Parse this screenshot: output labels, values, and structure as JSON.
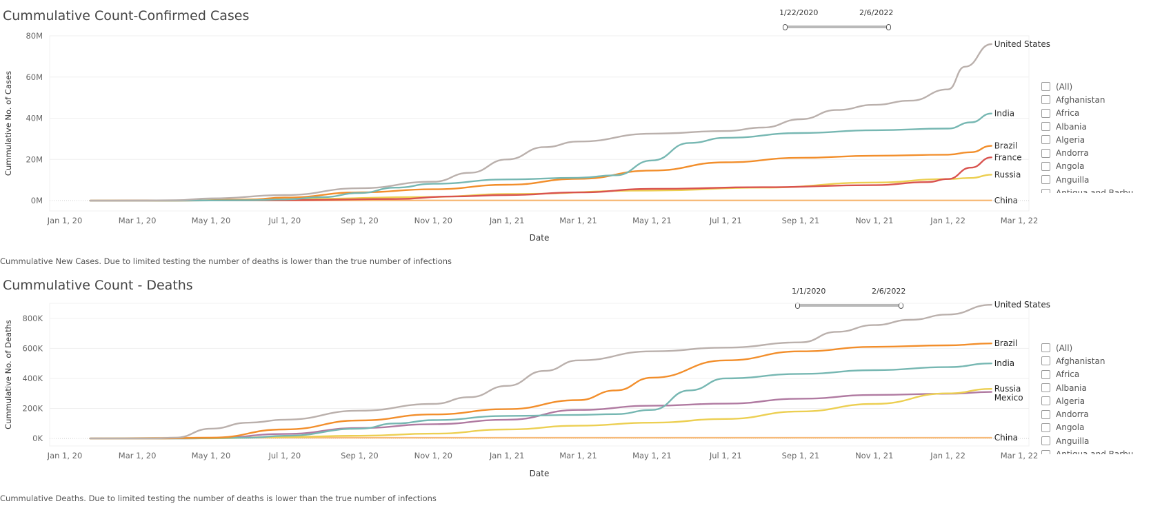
{
  "charts": [
    {
      "title": "Cummulative Count-Confirmed Cases",
      "caption": "Cummulative New Cases.  Due to limited testing the number of deaths is lower than the true number of infections",
      "slider": {
        "start": "1/22/2020",
        "end": "2/6/2022"
      },
      "legend_items": [
        "(All)",
        "Afghanistan",
        "Africa",
        "Albania",
        "Algeria",
        "Andorra",
        "Angola",
        "Anguilla",
        "Antigua and Barbu"
      ]
    },
    {
      "title": "Cummulative Count - Deaths",
      "caption": "Cummulative Deaths.  Due to limited testing the number of deaths is lower than the true number of infections",
      "slider": {
        "start": "1/1/2020",
        "end": "2/6/2022"
      },
      "legend_items": [
        "(All)",
        "Afghanistan",
        "Africa",
        "Albania",
        "Algeria",
        "Andorra",
        "Angola",
        "Anguilla",
        "Antigua and Barbu"
      ]
    }
  ],
  "chart_data": [
    {
      "type": "line",
      "title": "Cummulative Count-Confirmed Cases",
      "xlabel": "Date",
      "ylabel": "Cummulative No. of Cases",
      "xlim": [
        "2020-01-01",
        "2022-03-01"
      ],
      "ylim": [
        -5,
        80
      ],
      "yticks": [
        0,
        20,
        40,
        60,
        80
      ],
      "ytick_labels": [
        "0M",
        "20M",
        "40M",
        "60M",
        "80M"
      ],
      "xticks": [
        "2020-01-01",
        "2020-03-01",
        "2020-05-01",
        "2020-07-01",
        "2020-09-01",
        "2020-11-01",
        "2021-01-01",
        "2021-03-01",
        "2021-05-01",
        "2021-07-01",
        "2021-09-01",
        "2021-11-01",
        "2022-01-01",
        "2022-03-01"
      ],
      "xtick_labels": [
        "Jan 1, 20",
        "Mar 1, 20",
        "May 1, 20",
        "Jul 1, 20",
        "Sep 1, 20",
        "Nov 1, 20",
        "Jan 1, 21",
        "Mar 1, 21",
        "May 1, 21",
        "Jul 1, 21",
        "Sep 1, 21",
        "Nov 1, 21",
        "Jan 1, 22",
        "Mar 1, 22"
      ],
      "grid": true,
      "legend": "right",
      "series": [
        {
          "name": "China",
          "color": "#f7bb7a",
          "label_color": "#333333",
          "points": [
            [
              "2020-01-22",
              0.0
            ],
            [
              "2020-03-01",
              0.08
            ],
            [
              "2022-02-06",
              0.1
            ]
          ]
        },
        {
          "name": "Russia",
          "color": "#eccf52",
          "label_color": "#333333",
          "points": [
            [
              "2020-01-22",
              0
            ],
            [
              "2020-04-01",
              0.01
            ],
            [
              "2020-07-01",
              0.7
            ],
            [
              "2020-11-01",
              1.8
            ],
            [
              "2021-01-01",
              3.2
            ],
            [
              "2021-05-01",
              4.9
            ],
            [
              "2021-08-01",
              6.3
            ],
            [
              "2021-11-01",
              8.8
            ],
            [
              "2022-01-01",
              10.5
            ],
            [
              "2022-01-20",
              11.0
            ],
            [
              "2022-02-06",
              12.6
            ]
          ]
        },
        {
          "name": "France",
          "color": "#d9534f",
          "label_color": "#333333",
          "points": [
            [
              "2020-01-22",
              0
            ],
            [
              "2020-03-01",
              0.01
            ],
            [
              "2020-07-01",
              0.2
            ],
            [
              "2020-10-01",
              0.8
            ],
            [
              "2020-11-15",
              2.0
            ],
            [
              "2021-01-01",
              2.7
            ],
            [
              "2021-03-01",
              4.0
            ],
            [
              "2021-05-01",
              5.7
            ],
            [
              "2021-08-01",
              6.5
            ],
            [
              "2021-11-01",
              7.5
            ],
            [
              "2021-12-15",
              9.0
            ],
            [
              "2022-01-01",
              10.5
            ],
            [
              "2022-01-20",
              16.0
            ],
            [
              "2022-02-06",
              21.0
            ]
          ]
        },
        {
          "name": "Brazil",
          "color": "#f28e2b",
          "label_color": "#333333",
          "points": [
            [
              "2020-01-22",
              0
            ],
            [
              "2020-04-01",
              0.01
            ],
            [
              "2020-06-01",
              0.5
            ],
            [
              "2020-07-01",
              1.5
            ],
            [
              "2020-09-01",
              4.0
            ],
            [
              "2020-11-01",
              5.5
            ],
            [
              "2021-01-01",
              7.7
            ],
            [
              "2021-03-01",
              10.6
            ],
            [
              "2021-05-01",
              14.6
            ],
            [
              "2021-07-01",
              18.6
            ],
            [
              "2021-09-01",
              20.8
            ],
            [
              "2021-11-01",
              21.8
            ],
            [
              "2022-01-01",
              22.3
            ],
            [
              "2022-01-20",
              23.5
            ],
            [
              "2022-02-06",
              26.6
            ]
          ]
        },
        {
          "name": "India",
          "color": "#76b7b2",
          "label_color": "#333333",
          "points": [
            [
              "2020-01-22",
              0
            ],
            [
              "2020-04-01",
              0.01
            ],
            [
              "2020-06-01",
              0.2
            ],
            [
              "2020-07-01",
              0.6
            ],
            [
              "2020-08-01",
              1.7
            ],
            [
              "2020-09-01",
              3.7
            ],
            [
              "2020-10-01",
              6.3
            ],
            [
              "2020-11-01",
              8.2
            ],
            [
              "2021-01-01",
              10.3
            ],
            [
              "2021-03-01",
              11.1
            ],
            [
              "2021-04-01",
              12.3
            ],
            [
              "2021-05-01",
              19.5
            ],
            [
              "2021-06-01",
              28.0
            ],
            [
              "2021-07-01",
              30.5
            ],
            [
              "2021-09-01",
              32.8
            ],
            [
              "2021-11-01",
              34.2
            ],
            [
              "2022-01-01",
              35.0
            ],
            [
              "2022-01-20",
              38.0
            ],
            [
              "2022-02-06",
              42.3
            ]
          ]
        },
        {
          "name": "United States",
          "color": "#bab0ac",
          "label_color": "#333333",
          "points": [
            [
              "2020-01-22",
              0
            ],
            [
              "2020-03-01",
              0.01
            ],
            [
              "2020-04-01",
              0.2
            ],
            [
              "2020-05-01",
              1.1
            ],
            [
              "2020-07-01",
              2.7
            ],
            [
              "2020-09-01",
              6.0
            ],
            [
              "2020-11-01",
              9.2
            ],
            [
              "2020-12-01",
              13.5
            ],
            [
              "2021-01-01",
              20.0
            ],
            [
              "2021-02-01",
              26.0
            ],
            [
              "2021-03-01",
              28.7
            ],
            [
              "2021-05-01",
              32.5
            ],
            [
              "2021-07-01",
              33.8
            ],
            [
              "2021-08-01",
              35.5
            ],
            [
              "2021-09-01",
              39.5
            ],
            [
              "2021-10-01",
              44.0
            ],
            [
              "2021-11-01",
              46.5
            ],
            [
              "2021-12-01",
              48.5
            ],
            [
              "2022-01-01",
              54.0
            ],
            [
              "2022-01-15",
              65.0
            ],
            [
              "2022-02-06",
              76.0
            ]
          ]
        }
      ]
    },
    {
      "type": "line",
      "title": "Cummulative Count - Deaths",
      "xlabel": "Date",
      "ylabel": "Cummulative No. of Deaths",
      "xlim": [
        "2020-01-01",
        "2022-03-01"
      ],
      "ylim": [
        -50,
        900
      ],
      "yticks": [
        0,
        200,
        400,
        600,
        800
      ],
      "ytick_labels": [
        "0K",
        "200K",
        "400K",
        "600K",
        "800K"
      ],
      "xticks": [
        "2020-01-01",
        "2020-03-01",
        "2020-05-01",
        "2020-07-01",
        "2020-09-01",
        "2020-11-01",
        "2021-01-01",
        "2021-03-01",
        "2021-05-01",
        "2021-07-01",
        "2021-09-01",
        "2021-11-01",
        "2022-01-01",
        "2022-03-01"
      ],
      "xtick_labels": [
        "Jan 1, 20",
        "Mar 1, 20",
        "May 1, 20",
        "Jul 1, 20",
        "Sep 1, 20",
        "Nov 1, 20",
        "Jan 1, 21",
        "Mar 1, 21",
        "May 1, 21",
        "Jul 1, 21",
        "Sep 1, 21",
        "Nov 1, 21",
        "Jan 1, 22",
        "Mar 1, 22"
      ],
      "grid": true,
      "legend": "right",
      "series": [
        {
          "name": "China",
          "color": "#f7bb7a",
          "label_color": "#222222",
          "points": [
            [
              "2020-01-22",
              0
            ],
            [
              "2020-04-01",
              4.6
            ],
            [
              "2022-02-06",
              4.8
            ]
          ]
        },
        {
          "name": "Mexico",
          "color": "#b07aa1",
          "label_color": "#222222",
          "points": [
            [
              "2020-01-22",
              0
            ],
            [
              "2020-04-01",
              0.1
            ],
            [
              "2020-05-01",
              2
            ],
            [
              "2020-07-01",
              30
            ],
            [
              "2020-09-01",
              70
            ],
            [
              "2020-11-01",
              95
            ],
            [
              "2021-01-01",
              125
            ],
            [
              "2021-03-01",
              190
            ],
            [
              "2021-05-01",
              218
            ],
            [
              "2021-07-01",
              232
            ],
            [
              "2021-09-01",
              265
            ],
            [
              "2021-11-01",
              290
            ],
            [
              "2022-01-01",
              298
            ],
            [
              "2022-02-06",
              310
            ]
          ]
        },
        {
          "name": "Russia",
          "color": "#eccf52",
          "label_color": "#222222",
          "points": [
            [
              "2020-01-22",
              0
            ],
            [
              "2020-05-01",
              1
            ],
            [
              "2020-07-01",
              10
            ],
            [
              "2020-09-01",
              18
            ],
            [
              "2020-11-01",
              32
            ],
            [
              "2021-01-01",
              60
            ],
            [
              "2021-03-01",
              85
            ],
            [
              "2021-05-01",
              105
            ],
            [
              "2021-07-01",
              130
            ],
            [
              "2021-09-01",
              180
            ],
            [
              "2021-11-01",
              230
            ],
            [
              "2022-01-01",
              300
            ],
            [
              "2022-02-06",
              330
            ]
          ]
        },
        {
          "name": "India",
          "color": "#76b7b2",
          "label_color": "#222222",
          "points": [
            [
              "2020-01-22",
              0
            ],
            [
              "2020-04-01",
              0.1
            ],
            [
              "2020-06-01",
              5
            ],
            [
              "2020-07-01",
              18
            ],
            [
              "2020-09-01",
              65
            ],
            [
              "2020-10-01",
              100
            ],
            [
              "2020-11-01",
              122
            ],
            [
              "2021-01-01",
              150
            ],
            [
              "2021-03-01",
              157
            ],
            [
              "2021-04-01",
              162
            ],
            [
              "2021-05-01",
              190
            ],
            [
              "2021-06-01",
              320
            ],
            [
              "2021-07-01",
              400
            ],
            [
              "2021-09-01",
              430
            ],
            [
              "2021-11-01",
              455
            ],
            [
              "2022-01-01",
              475
            ],
            [
              "2022-02-06",
              500
            ]
          ]
        },
        {
          "name": "Brazil",
          "color": "#f28e2b",
          "label_color": "#222222",
          "points": [
            [
              "2020-01-22",
              0
            ],
            [
              "2020-03-15",
              0.1
            ],
            [
              "2020-05-01",
              5
            ],
            [
              "2020-07-01",
              60
            ],
            [
              "2020-09-01",
              120
            ],
            [
              "2020-11-01",
              160
            ],
            [
              "2021-01-01",
              195
            ],
            [
              "2021-03-01",
              255
            ],
            [
              "2021-04-01",
              320
            ],
            [
              "2021-05-01",
              405
            ],
            [
              "2021-07-01",
              520
            ],
            [
              "2021-09-01",
              580
            ],
            [
              "2021-11-01",
              610
            ],
            [
              "2022-01-01",
              620
            ],
            [
              "2022-02-06",
              633
            ]
          ]
        },
        {
          "name": "United States",
          "color": "#bab0ac",
          "label_color": "#222222",
          "points": [
            [
              "2020-01-22",
              0
            ],
            [
              "2020-03-15",
              0.5
            ],
            [
              "2020-04-01",
              5
            ],
            [
              "2020-05-01",
              65
            ],
            [
              "2020-06-01",
              105
            ],
            [
              "2020-07-01",
              125
            ],
            [
              "2020-09-01",
              185
            ],
            [
              "2020-11-01",
              230
            ],
            [
              "2020-12-01",
              275
            ],
            [
              "2021-01-01",
              350
            ],
            [
              "2021-02-01",
              450
            ],
            [
              "2021-03-01",
              520
            ],
            [
              "2021-05-01",
              580
            ],
            [
              "2021-07-01",
              605
            ],
            [
              "2021-09-01",
              640
            ],
            [
              "2021-10-01",
              710
            ],
            [
              "2021-11-01",
              755
            ],
            [
              "2021-12-01",
              790
            ],
            [
              "2022-01-01",
              825
            ],
            [
              "2022-02-06",
              890
            ]
          ]
        }
      ]
    }
  ]
}
